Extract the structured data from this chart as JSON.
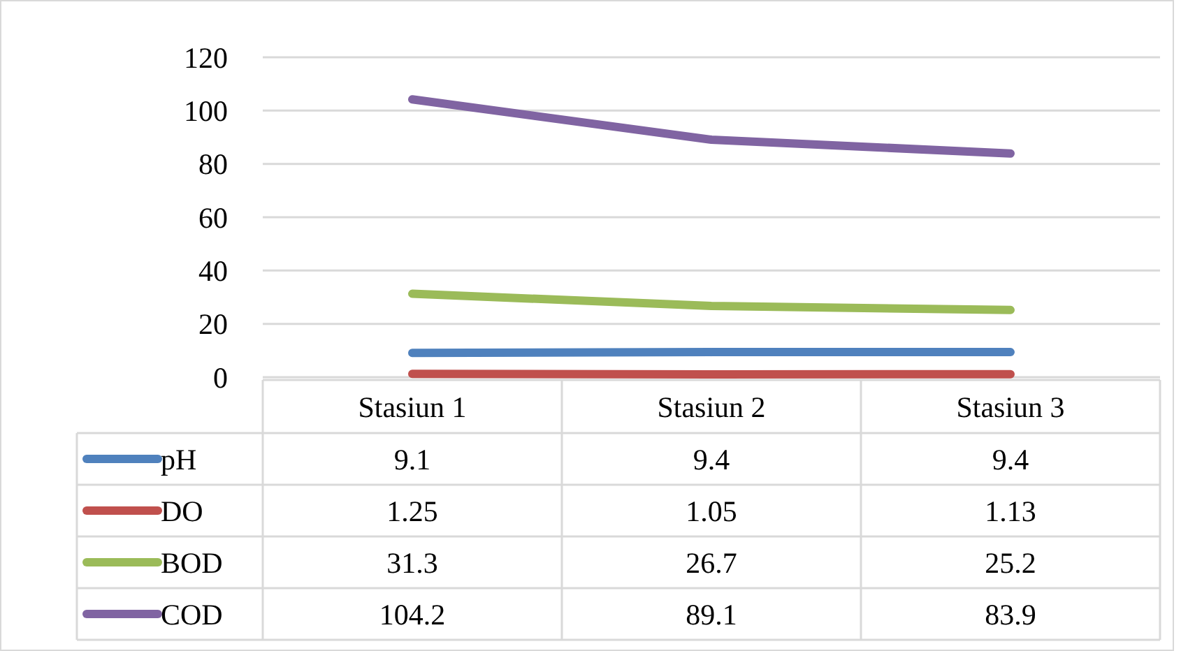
{
  "chart_data": {
    "type": "line",
    "categories": [
      "Stasiun 1",
      "Stasiun 2",
      "Stasiun 3"
    ],
    "series": [
      {
        "name": "pH",
        "color": "#4f81bd",
        "values": [
          9.1,
          9.4,
          9.4
        ]
      },
      {
        "name": "DO",
        "color": "#c0504d",
        "values": [
          1.25,
          1.05,
          1.13
        ]
      },
      {
        "name": "BOD",
        "color": "#9bbb59",
        "values": [
          31.3,
          26.7,
          25.2
        ]
      },
      {
        "name": "COD",
        "color": "#8064a2",
        "values": [
          104.2,
          89.1,
          83.9
        ]
      }
    ],
    "ylim": [
      0,
      120
    ],
    "yticks": [
      0,
      20,
      40,
      60,
      80,
      100,
      120
    ],
    "grid": "y",
    "legend": "bottom",
    "data_labels": true,
    "marker": "none",
    "line_style": "solid"
  }
}
